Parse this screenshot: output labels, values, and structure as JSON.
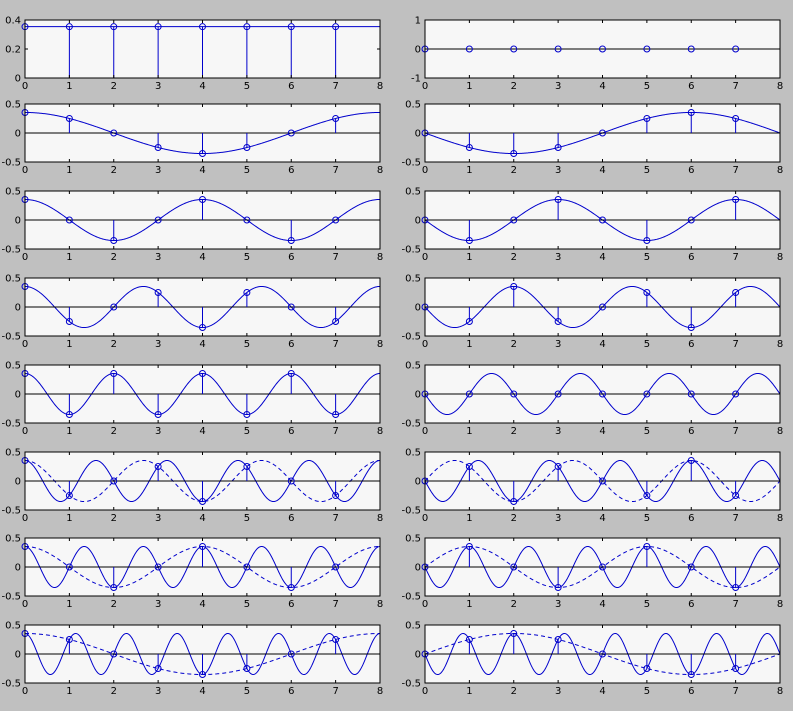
{
  "figure": {
    "background": "#c0c0c0",
    "axes_background": "#f7f7f7",
    "line_color": "#0000cc"
  },
  "chart_data": [
    {
      "type": "line",
      "panel": "row1-left",
      "xlim": [
        0,
        8
      ],
      "ylim": [
        0,
        0.4
      ],
      "ylabels": [
        "0",
        "0.2",
        "0.4"
      ],
      "xlabels": [
        "0",
        "1",
        "2",
        "3",
        "4",
        "5",
        "6",
        "7",
        "8"
      ],
      "continuous": "constant 0.354",
      "stems": {
        "x": [
          0,
          1,
          2,
          3,
          4,
          5,
          6,
          7
        ],
        "y": [
          0.354,
          0.354,
          0.354,
          0.354,
          0.354,
          0.354,
          0.354,
          0.354
        ]
      }
    },
    {
      "type": "line",
      "panel": "row1-right",
      "xlim": [
        0,
        8
      ],
      "ylim": [
        -1,
        1
      ],
      "ylabels": [
        "-1",
        "0",
        "1"
      ],
      "xlabels": [
        "0",
        "1",
        "2",
        "3",
        "4",
        "5",
        "6",
        "7",
        "8"
      ],
      "continuous": "constant 0",
      "stems": {
        "x": [
          0,
          1,
          2,
          3,
          4,
          5,
          6,
          7
        ],
        "y": [
          0,
          0,
          0,
          0,
          0,
          0,
          0,
          0
        ]
      }
    },
    {
      "type": "line",
      "panel": "row2-left",
      "xlim": [
        0,
        8
      ],
      "ylim": [
        -0.5,
        0.5
      ],
      "ylabels": [
        "-0.5",
        "0",
        "0.5"
      ],
      "xlabels": [
        "0",
        "1",
        "2",
        "3",
        "4",
        "5",
        "6",
        "7",
        "8"
      ],
      "continuous": "0.354*cos(2*pi*1*x/8)",
      "stems": {
        "x": [
          0,
          1,
          2,
          3,
          4,
          5,
          6,
          7
        ],
        "y": [
          0.354,
          0.25,
          0,
          -0.25,
          -0.354,
          -0.25,
          0,
          0.25
        ]
      }
    },
    {
      "type": "line",
      "panel": "row2-right",
      "xlim": [
        0,
        8
      ],
      "ylim": [
        -0.5,
        0.5
      ],
      "ylabels": [
        "-0.5",
        "0",
        "0.5"
      ],
      "xlabels": [
        "0",
        "1",
        "2",
        "3",
        "4",
        "5",
        "6",
        "7",
        "8"
      ],
      "continuous": "-0.354*sin(2*pi*1*x/8)",
      "stems": {
        "x": [
          0,
          1,
          2,
          3,
          4,
          5,
          6,
          7
        ],
        "y": [
          0,
          -0.25,
          -0.354,
          -0.25,
          0,
          0.25,
          0.354,
          0.25
        ]
      }
    },
    {
      "type": "line",
      "panel": "row3-left",
      "xlim": [
        0,
        8
      ],
      "ylim": [
        -0.5,
        0.5
      ],
      "ylabels": [
        "-0.5",
        "0",
        "0.5"
      ],
      "xlabels": [
        "0",
        "1",
        "2",
        "3",
        "4",
        "5",
        "6",
        "7",
        "8"
      ],
      "continuous": "0.354*cos(2*pi*2*x/8)",
      "stems": {
        "x": [
          0,
          1,
          2,
          3,
          4,
          5,
          6,
          7
        ],
        "y": [
          0.354,
          0,
          -0.354,
          0,
          0.354,
          0,
          -0.354,
          0
        ]
      }
    },
    {
      "type": "line",
      "panel": "row3-right",
      "xlim": [
        0,
        8
      ],
      "ylim": [
        -0.5,
        0.5
      ],
      "ylabels": [
        "-0.5",
        "0",
        "0.5"
      ],
      "xlabels": [
        "0",
        "1",
        "2",
        "3",
        "4",
        "5",
        "6",
        "7",
        "8"
      ],
      "continuous": "-0.354*sin(2*pi*2*x/8)",
      "stems": {
        "x": [
          0,
          1,
          2,
          3,
          4,
          5,
          6,
          7
        ],
        "y": [
          0,
          -0.354,
          0,
          0.354,
          0,
          -0.354,
          0,
          0.354
        ]
      }
    },
    {
      "type": "line",
      "panel": "row4-left",
      "xlim": [
        0,
        8
      ],
      "ylim": [
        -0.5,
        0.5
      ],
      "ylabels": [
        "-0.5",
        "0",
        "0.5"
      ],
      "xlabels": [
        "0",
        "1",
        "2",
        "3",
        "4",
        "5",
        "6",
        "7",
        "8"
      ],
      "continuous": "0.354*cos(2*pi*3*x/8)",
      "stems": {
        "x": [
          0,
          1,
          2,
          3,
          4,
          5,
          6,
          7
        ],
        "y": [
          0.354,
          -0.25,
          0,
          0.25,
          -0.354,
          0.25,
          0,
          -0.25
        ]
      }
    },
    {
      "type": "line",
      "panel": "row4-right",
      "xlim": [
        0,
        8
      ],
      "ylim": [
        -0.5,
        0.5
      ],
      "ylabels": [
        "-0.5",
        "0",
        "0.5"
      ],
      "xlabels": [
        "0",
        "1",
        "2",
        "3",
        "4",
        "5",
        "6",
        "7",
        "8"
      ],
      "continuous": "-0.354*sin(2*pi*3*x/8)",
      "stems": {
        "x": [
          0,
          1,
          2,
          3,
          4,
          5,
          6,
          7
        ],
        "y": [
          0,
          -0.25,
          0.354,
          -0.25,
          0,
          0.25,
          -0.354,
          0.25
        ]
      }
    },
    {
      "type": "line",
      "panel": "row5-left",
      "xlim": [
        0,
        8
      ],
      "ylim": [
        -0.5,
        0.5
      ],
      "ylabels": [
        "-0.5",
        "0",
        "0.5"
      ],
      "xlabels": [
        "0",
        "1",
        "2",
        "3",
        "4",
        "5",
        "6",
        "7",
        "8"
      ],
      "continuous": "0.354*cos(2*pi*4*x/8)",
      "stems": {
        "x": [
          0,
          1,
          2,
          3,
          4,
          5,
          6,
          7
        ],
        "y": [
          0.354,
          -0.354,
          0.354,
          -0.354,
          0.354,
          -0.354,
          0.354,
          -0.354
        ]
      }
    },
    {
      "type": "line",
      "panel": "row5-right",
      "xlim": [
        0,
        8
      ],
      "ylim": [
        -0.5,
        0.5
      ],
      "ylabels": [
        "-0.5",
        "0",
        "0.5"
      ],
      "xlabels": [
        "0",
        "1",
        "2",
        "3",
        "4",
        "5",
        "6",
        "7",
        "8"
      ],
      "continuous": "-0.354*sin(2*pi*4*x/8)",
      "stems": {
        "x": [
          0,
          1,
          2,
          3,
          4,
          5,
          6,
          7
        ],
        "y": [
          0,
          0,
          0,
          0,
          0,
          0,
          0,
          0
        ]
      }
    },
    {
      "type": "line",
      "panel": "row6-left",
      "xlim": [
        0,
        8
      ],
      "ylim": [
        -0.5,
        0.5
      ],
      "ylabels": [
        "-0.5",
        "0",
        "0.5"
      ],
      "xlabels": [
        "0",
        "1",
        "2",
        "3",
        "4",
        "5",
        "6",
        "7",
        "8"
      ],
      "continuous": "0.354*cos(2*pi*5*x/8)",
      "dashed": "0.354*cos(2*pi*3*x/8)",
      "stems": {
        "x": [
          0,
          1,
          2,
          3,
          4,
          5,
          6,
          7
        ],
        "y": [
          0.354,
          -0.25,
          0,
          0.25,
          -0.354,
          0.25,
          0,
          -0.25
        ]
      }
    },
    {
      "type": "line",
      "panel": "row6-right",
      "xlim": [
        0,
        8
      ],
      "ylim": [
        -0.5,
        0.5
      ],
      "ylabels": [
        "-0.5",
        "0",
        "0.5"
      ],
      "xlabels": [
        "0",
        "1",
        "2",
        "3",
        "4",
        "5",
        "6",
        "7",
        "8"
      ],
      "continuous": "-0.354*sin(2*pi*5*x/8)",
      "dashed": "0.354*sin(2*pi*3*x/8)",
      "stems": {
        "x": [
          0,
          1,
          2,
          3,
          4,
          5,
          6,
          7
        ],
        "y": [
          0,
          0.25,
          -0.354,
          0.25,
          0,
          -0.25,
          0.354,
          -0.25
        ]
      }
    },
    {
      "type": "line",
      "panel": "row7-left",
      "xlim": [
        0,
        8
      ],
      "ylim": [
        -0.5,
        0.5
      ],
      "ylabels": [
        "-0.5",
        "0",
        "0.5"
      ],
      "xlabels": [
        "0",
        "1",
        "2",
        "3",
        "4",
        "5",
        "6",
        "7",
        "8"
      ],
      "continuous": "0.354*cos(2*pi*6*x/8)",
      "dashed": "0.354*cos(2*pi*2*x/8)",
      "stems": {
        "x": [
          0,
          1,
          2,
          3,
          4,
          5,
          6,
          7
        ],
        "y": [
          0.354,
          0,
          -0.354,
          0,
          0.354,
          0,
          -0.354,
          0
        ]
      }
    },
    {
      "type": "line",
      "panel": "row7-right",
      "xlim": [
        0,
        8
      ],
      "ylim": [
        -0.5,
        0.5
      ],
      "ylabels": [
        "-0.5",
        "0",
        "0.5"
      ],
      "xlabels": [
        "0",
        "1",
        "2",
        "3",
        "4",
        "5",
        "6",
        "7",
        "8"
      ],
      "continuous": "-0.354*sin(2*pi*6*x/8)",
      "dashed": "0.354*sin(2*pi*2*x/8)",
      "stems": {
        "x": [
          0,
          1,
          2,
          3,
          4,
          5,
          6,
          7
        ],
        "y": [
          0,
          0.354,
          0,
          -0.354,
          0,
          0.354,
          0,
          -0.354
        ]
      }
    },
    {
      "type": "line",
      "panel": "row8-left",
      "xlim": [
        0,
        8
      ],
      "ylim": [
        -0.5,
        0.5
      ],
      "ylabels": [
        "-0.5",
        "0",
        "0.5"
      ],
      "xlabels": [
        "0",
        "1",
        "2",
        "3",
        "4",
        "5",
        "6",
        "7",
        "8"
      ],
      "continuous": "0.354*cos(2*pi*7*x/8)",
      "dashed": "0.354*cos(2*pi*1*x/8)",
      "stems": {
        "x": [
          0,
          1,
          2,
          3,
          4,
          5,
          6,
          7
        ],
        "y": [
          0.354,
          0.25,
          0,
          -0.25,
          -0.354,
          -0.25,
          0,
          0.25
        ]
      }
    },
    {
      "type": "line",
      "panel": "row8-right",
      "xlim": [
        0,
        8
      ],
      "ylim": [
        -0.5,
        0.5
      ],
      "ylabels": [
        "-0.5",
        "0",
        "0.5"
      ],
      "xlabels": [
        "0",
        "1",
        "2",
        "3",
        "4",
        "5",
        "6",
        "7",
        "8"
      ],
      "continuous": "-0.354*sin(2*pi*7*x/8)",
      "dashed": "0.354*sin(2*pi*1*x/8)",
      "stems": {
        "x": [
          0,
          1,
          2,
          3,
          4,
          5,
          6,
          7
        ],
        "y": [
          0,
          0.25,
          0.354,
          0.25,
          0,
          -0.25,
          -0.354,
          -0.25
        ]
      }
    }
  ]
}
